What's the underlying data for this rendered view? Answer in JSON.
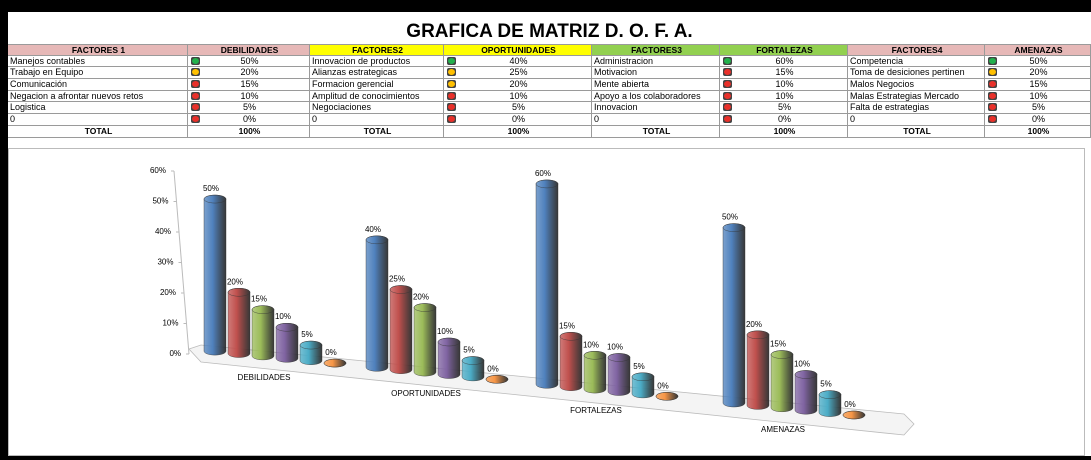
{
  "table": {
    "title": "GRAFICA DE MATRIZ  D. O. F.  A.",
    "headers": [
      "FACTORES 1",
      "DEBILIDADES",
      "FACTORES2",
      "OPORTUNIDADES",
      "FACTORES3",
      "FORTALEZAS",
      "FACTORES4",
      "AMENAZAS"
    ],
    "header_colors": [
      "#e6b8b7",
      "#e6b8b7",
      "#ffff00",
      "#ffff00",
      "#92d050",
      "#92d050",
      "#e6b8b7",
      "#e6b8b7"
    ],
    "rows": [
      [
        "Manejos contables",
        "50%",
        "Innovacion de productos",
        "40%",
        "Administracion",
        "60%",
        "Competencia",
        "50%"
      ],
      [
        "Trabajo en Equipo",
        "20%",
        "Alianzas estrategicas",
        "25%",
        "Motivacion",
        "15%",
        "Toma de desiciones pertinen",
        "20%"
      ],
      [
        "Comunicación",
        "15%",
        "Formacion gerencial",
        "20%",
        "Mente abierta",
        "10%",
        "Malos Negocios",
        "15%"
      ],
      [
        "Negacion a afrontar nuevos retos",
        "10%",
        "Amplitud de conocimientos",
        "10%",
        "Apoyo a los colaboradores",
        "10%",
        "Malas Estrategias Mercado",
        "10%"
      ],
      [
        "Logistica",
        "5%",
        "Negociaciones",
        "5%",
        "Innovacion",
        "5%",
        "Falta de estrategias",
        "5%"
      ],
      [
        "0",
        "0%",
        "0",
        "0%",
        "0",
        "0%",
        "0",
        "0%"
      ]
    ],
    "icons": [
      [
        "#22b14c",
        "#22b14c",
        "#22b14c",
        "#22b14c"
      ],
      [
        "#ffc000",
        "#ffc000",
        "#e8302a",
        "#ffc000"
      ],
      [
        "#e8302a",
        "#ffc000",
        "#e8302a",
        "#e8302a"
      ],
      [
        "#e8302a",
        "#e8302a",
        "#e8302a",
        "#e8302a"
      ],
      [
        "#e8302a",
        "#e8302a",
        "#e8302a",
        "#e8302a"
      ],
      [
        "#e8302a",
        "#e8302a",
        "#e8302a",
        "#e8302a"
      ]
    ],
    "total": [
      "TOTAL",
      "100%",
      "TOTAL",
      "100%",
      "TOTAL",
      "100%",
      "TOTAL",
      "100%"
    ]
  },
  "chart_data": {
    "type": "bar3d",
    "categories": [
      "DEBILIDADES",
      "OPORTUNIDADES",
      "FORTALEZAS",
      "AMENAZAS"
    ],
    "series": [
      {
        "color": "#4f81bd",
        "values": [
          50,
          40,
          60,
          50
        ],
        "value_labels": [
          "50%",
          "40%",
          "60%",
          "50%"
        ]
      },
      {
        "color": "#c0504d",
        "values": [
          20,
          25,
          15,
          20
        ],
        "value_labels": [
          "20%",
          "25%",
          "15%",
          "20%"
        ]
      },
      {
        "color": "#9bbb59",
        "values": [
          15,
          20,
          10,
          15
        ],
        "value_labels": [
          "15%",
          "20%",
          "10%",
          "15%"
        ]
      },
      {
        "color": "#8064a2",
        "values": [
          10,
          10,
          10,
          10
        ],
        "value_labels": [
          "10%",
          "10%",
          "10%",
          "10%"
        ]
      },
      {
        "color": "#4bacc6",
        "values": [
          5,
          5,
          5,
          5
        ],
        "value_labels": [
          "5%",
          "5%",
          "5%",
          "5%"
        ]
      },
      {
        "color": "#f79646",
        "values": [
          0,
          0,
          0,
          0
        ],
        "value_labels": [
          "0%",
          "0%",
          "0%",
          "0%"
        ]
      }
    ],
    "ylim": [
      0,
      60
    ],
    "yticks": [
      {
        "value": 0,
        "label": "0%"
      },
      {
        "value": 10,
        "label": "10%"
      },
      {
        "value": 20,
        "label": "20%"
      },
      {
        "value": 30,
        "label": "30%"
      },
      {
        "value": 40,
        "label": "40%"
      },
      {
        "value": 50,
        "label": "50%"
      },
      {
        "value": 60,
        "label": "60%"
      }
    ]
  }
}
